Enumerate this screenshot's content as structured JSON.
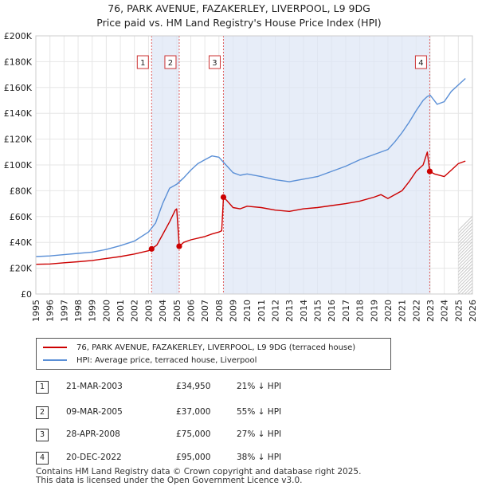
{
  "chart_data": {
    "type": "line",
    "title": "76, PARK AVENUE, FAZAKERLEY, LIVERPOOL, L9 9DG",
    "subtitle": "Price paid vs. HM Land Registry's House Price Index (HPI)",
    "xlabel": "",
    "ylabel": "",
    "xlim": [
      1995,
      2026
    ],
    "ylim": [
      0,
      200000
    ],
    "x_ticks": [
      "1995",
      "1996",
      "1997",
      "1998",
      "1999",
      "2000",
      "2001",
      "2002",
      "2003",
      "2004",
      "2005",
      "2006",
      "2007",
      "2008",
      "2009",
      "2010",
      "2011",
      "2012",
      "2013",
      "2014",
      "2015",
      "2016",
      "2017",
      "2018",
      "2019",
      "2020",
      "2021",
      "2022",
      "2023",
      "2024",
      "2025",
      "2026"
    ],
    "y_ticks": [
      "£0",
      "£20K",
      "£40K",
      "£60K",
      "£80K",
      "£100K",
      "£120K",
      "£140K",
      "£160K",
      "£180K",
      "£200K"
    ],
    "grid": true,
    "series": [
      {
        "name": "76, PARK AVENUE, FAZAKERLEY, LIVERPOOL, L9 9DG (terraced house)",
        "color": "#cc0000",
        "x": [
          1995.0,
          1996.0,
          1997.0,
          1998.0,
          1999.0,
          2000.0,
          2001.0,
          2002.0,
          2003.0,
          2003.22,
          2003.6,
          2004.0,
          2004.5,
          2004.9,
          2005.0,
          2005.18,
          2005.5,
          2006.0,
          2007.0,
          2007.5,
          2008.0,
          2008.2,
          2008.32,
          2008.6,
          2009.0,
          2009.5,
          2010.0,
          2011.0,
          2012.0,
          2013.0,
          2014.0,
          2015.0,
          2016.0,
          2017.0,
          2018.0,
          2019.0,
          2019.5,
          2020.0,
          2021.0,
          2021.5,
          2022.0,
          2022.5,
          2022.8,
          2022.97,
          2023.3,
          2024.0,
          2024.5,
          2025.0,
          2025.5
        ],
        "values": [
          23000,
          23300,
          24200,
          25000,
          26000,
          27500,
          29000,
          31000,
          33500,
          34950,
          38000,
          46000,
          56000,
          65000,
          66000,
          37000,
          40000,
          42000,
          44500,
          46500,
          48000,
          49000,
          75000,
          72000,
          67000,
          66000,
          68000,
          67000,
          65000,
          64000,
          66000,
          67000,
          68500,
          70000,
          72000,
          75000,
          77000,
          74000,
          80000,
          87000,
          95000,
          100000,
          110000,
          95000,
          93000,
          91000,
          96000,
          101000,
          103000
        ]
      },
      {
        "name": "HPI: Average price, terraced house, Liverpool",
        "color": "#5a8fd6",
        "x": [
          1995.0,
          1996.0,
          1997.0,
          1998.0,
          1999.0,
          2000.0,
          2001.0,
          2002.0,
          2003.0,
          2003.5,
          2004.0,
          2004.5,
          2005.0,
          2005.5,
          2006.0,
          2006.5,
          2007.0,
          2007.5,
          2008.0,
          2008.5,
          2009.0,
          2009.5,
          2010.0,
          2011.0,
          2012.0,
          2013.0,
          2014.0,
          2015.0,
          2016.0,
          2017.0,
          2018.0,
          2019.0,
          2020.0,
          2020.5,
          2021.0,
          2021.5,
          2022.0,
          2022.5,
          2022.8,
          2023.0,
          2023.5,
          2024.0,
          2024.5,
          2025.0,
          2025.5
        ],
        "values": [
          29000,
          29500,
          30500,
          31500,
          32500,
          34500,
          37500,
          41000,
          48000,
          55000,
          70000,
          82000,
          85000,
          90000,
          96000,
          101000,
          104000,
          107000,
          106000,
          100000,
          94000,
          92000,
          93000,
          91000,
          88500,
          87000,
          89000,
          91000,
          95000,
          99000,
          104000,
          108000,
          112000,
          118000,
          125000,
          133000,
          142000,
          150000,
          153000,
          154000,
          147000,
          149000,
          157000,
          162000,
          167000
        ]
      }
    ],
    "markers": [
      {
        "label": "1",
        "x": 2003.22,
        "value": 34950
      },
      {
        "label": "2",
        "x": 2005.18,
        "value": 37000
      },
      {
        "label": "3",
        "x": 2008.32,
        "value": 75000
      },
      {
        "label": "4",
        "x": 2022.97,
        "value": 95000
      }
    ]
  },
  "legend": {
    "items": [
      {
        "label": "76, PARK AVENUE, FAZAKERLEY, LIVERPOOL, L9 9DG (terraced house)",
        "color": "#cc0000"
      },
      {
        "label": "HPI: Average price, terraced house, Liverpool",
        "color": "#5a8fd6"
      }
    ]
  },
  "transactions": [
    {
      "num": "1",
      "date": "21-MAR-2003",
      "price": "£34,950",
      "hpi": "21% ↓ HPI"
    },
    {
      "num": "2",
      "date": "09-MAR-2005",
      "price": "£37,000",
      "hpi": "55% ↓ HPI"
    },
    {
      "num": "3",
      "date": "28-APR-2008",
      "price": "£75,000",
      "hpi": "27% ↓ HPI"
    },
    {
      "num": "4",
      "date": "20-DEC-2022",
      "price": "£95,000",
      "hpi": "38% ↓ HPI"
    }
  ],
  "footer": {
    "line1": "Contains HM Land Registry data © Crown copyright and database right 2025.",
    "line2": "This data is licensed under the Open Government Licence v3.0."
  }
}
